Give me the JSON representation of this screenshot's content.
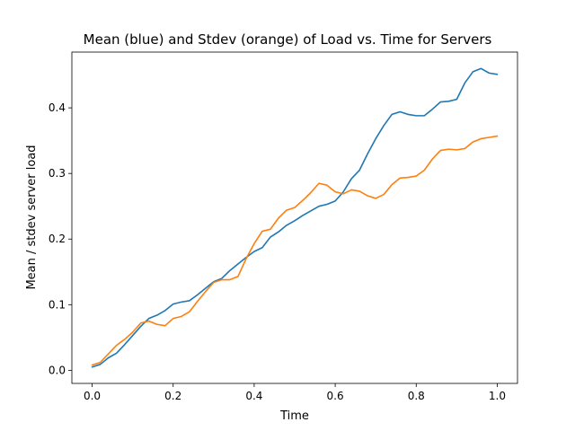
{
  "chart_data": {
    "type": "line",
    "title": "Mean (blue) and Stdev (orange) of Load vs. Time for Servers",
    "xlabel": "Time",
    "ylabel": "Mean / stdev server load",
    "xlim": [
      -0.05,
      1.05
    ],
    "ylim": [
      -0.02,
      0.485
    ],
    "xticks": [
      "0.0",
      "0.2",
      "0.4",
      "0.6",
      "0.8",
      "1.0"
    ],
    "yticks": [
      "0.0",
      "0.1",
      "0.2",
      "0.3",
      "0.4"
    ],
    "grid": false,
    "series": [
      {
        "color": "#1f77b4",
        "x": [
          0.0,
          0.02,
          0.04,
          0.06,
          0.08,
          0.1,
          0.12,
          0.14,
          0.16,
          0.18,
          0.2,
          0.22,
          0.24,
          0.26,
          0.28,
          0.3,
          0.32,
          0.34,
          0.36,
          0.38,
          0.4,
          0.42,
          0.44,
          0.46,
          0.48,
          0.5,
          0.52,
          0.54,
          0.56,
          0.58,
          0.6,
          0.62,
          0.64,
          0.66,
          0.68,
          0.7,
          0.72,
          0.74,
          0.76,
          0.78,
          0.8,
          0.82,
          0.84,
          0.86,
          0.88,
          0.9,
          0.92,
          0.94,
          0.96,
          0.98,
          1.0
        ],
        "values": [
          0.005,
          0.009,
          0.019,
          0.026,
          0.039,
          0.053,
          0.067,
          0.079,
          0.084,
          0.091,
          0.101,
          0.104,
          0.106,
          0.115,
          0.125,
          0.135,
          0.14,
          0.152,
          0.162,
          0.172,
          0.181,
          0.187,
          0.203,
          0.211,
          0.221,
          0.228,
          0.236,
          0.243,
          0.25,
          0.253,
          0.258,
          0.272,
          0.292,
          0.305,
          0.33,
          0.353,
          0.373,
          0.39,
          0.394,
          0.39,
          0.388,
          0.388,
          0.398,
          0.409,
          0.41,
          0.413,
          0.438,
          0.455,
          0.46,
          0.453,
          0.451
        ]
      },
      {
        "color": "#ff7f0e",
        "x": [
          0.0,
          0.02,
          0.04,
          0.06,
          0.08,
          0.1,
          0.12,
          0.14,
          0.16,
          0.18,
          0.2,
          0.22,
          0.24,
          0.26,
          0.28,
          0.3,
          0.32,
          0.34,
          0.36,
          0.38,
          0.4,
          0.42,
          0.44,
          0.46,
          0.48,
          0.5,
          0.52,
          0.54,
          0.56,
          0.58,
          0.6,
          0.62,
          0.64,
          0.66,
          0.68,
          0.7,
          0.72,
          0.74,
          0.76,
          0.78,
          0.8,
          0.82,
          0.84,
          0.86,
          0.88,
          0.9,
          0.92,
          0.94,
          0.96,
          0.98,
          1.0
        ],
        "values": [
          0.008,
          0.012,
          0.025,
          0.038,
          0.047,
          0.058,
          0.072,
          0.075,
          0.07,
          0.068,
          0.079,
          0.082,
          0.089,
          0.105,
          0.12,
          0.134,
          0.138,
          0.138,
          0.143,
          0.17,
          0.193,
          0.212,
          0.215,
          0.232,
          0.244,
          0.248,
          0.259,
          0.271,
          0.285,
          0.282,
          0.272,
          0.269,
          0.275,
          0.273,
          0.266,
          0.262,
          0.268,
          0.283,
          0.293,
          0.294,
          0.296,
          0.305,
          0.322,
          0.335,
          0.337,
          0.336,
          0.338,
          0.348,
          0.353,
          0.355,
          0.357
        ]
      }
    ]
  }
}
